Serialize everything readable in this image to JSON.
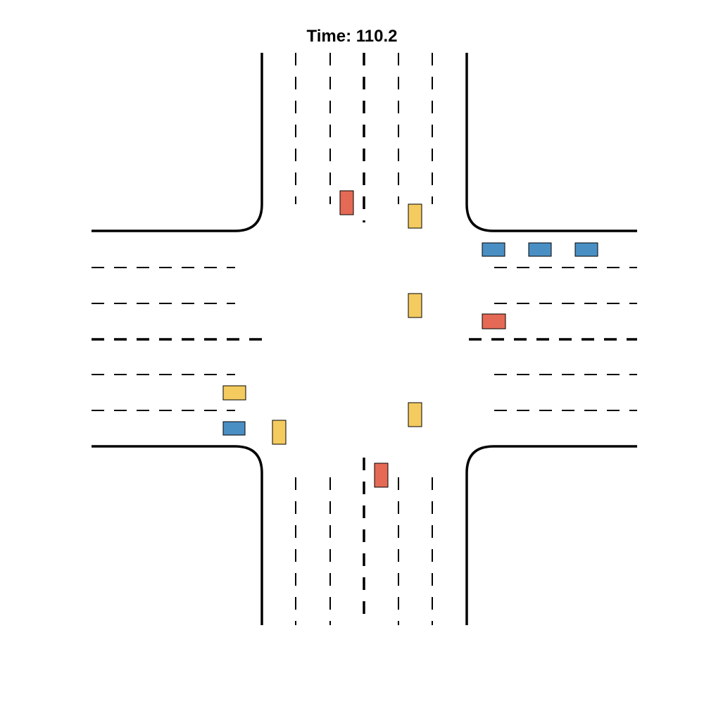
{
  "title": "Time: 110.2",
  "colors": {
    "red": "#E46A55",
    "yellow": "#F4CB5F",
    "blue": "#4A8FC4",
    "road_line": "#000000",
    "background": "#FFFFFF"
  },
  "vehicles": [
    {
      "id": "v1",
      "color": "red"
    },
    {
      "id": "v2",
      "color": "yellow"
    },
    {
      "id": "v3",
      "color": "blue"
    },
    {
      "id": "v4",
      "color": "blue"
    },
    {
      "id": "v5",
      "color": "blue"
    },
    {
      "id": "v6",
      "color": "yellow"
    },
    {
      "id": "v7",
      "color": "red"
    },
    {
      "id": "v8",
      "color": "yellow"
    },
    {
      "id": "v9",
      "color": "blue"
    },
    {
      "id": "v10",
      "color": "yellow"
    },
    {
      "id": "v11",
      "color": "yellow"
    },
    {
      "id": "v12",
      "color": "red"
    }
  ]
}
